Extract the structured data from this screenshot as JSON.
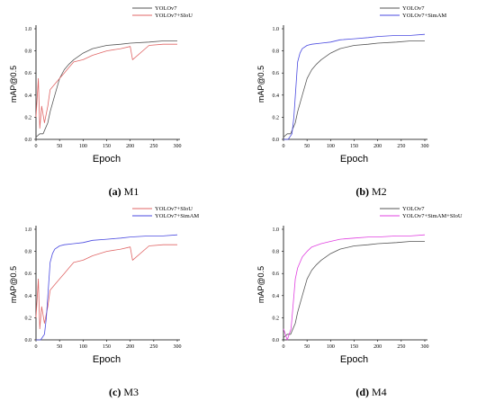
{
  "colors": {
    "YOLOv7": "#555555",
    "YOLOv7+SIoU": "#e06666",
    "YOLOv7+SimAM": "#4a4ae0",
    "YOLOv7+SimAM+SIoU": "#e040e0"
  },
  "chart_data": [
    {
      "type": "line",
      "caption_label": "(a)",
      "caption_text": "M1",
      "xlabel": "Epoch",
      "ylabel": "mAP@0.5",
      "xlim": [
        0,
        300
      ],
      "ylim": [
        0,
        1.0
      ],
      "xticks": [
        "0",
        "50",
        "100",
        "150",
        "200",
        "250",
        "300"
      ],
      "yticks": [
        "0.0",
        "0.2",
        "0.4",
        "0.6",
        "0.8",
        "1.0"
      ],
      "legend_position": "top",
      "series": [
        {
          "name": "YOLOv7",
          "x": [
            0,
            8,
            15,
            20,
            25,
            30,
            40,
            50,
            60,
            70,
            80,
            100,
            120,
            150,
            180,
            200,
            240,
            270,
            300
          ],
          "y": [
            0.02,
            0.05,
            0.05,
            0.1,
            0.15,
            0.25,
            0.4,
            0.55,
            0.63,
            0.68,
            0.72,
            0.78,
            0.82,
            0.85,
            0.86,
            0.87,
            0.88,
            0.89,
            0.89
          ]
        },
        {
          "name": "YOLOv7+SIoU",
          "x": [
            0,
            5,
            8,
            12,
            18,
            25,
            30,
            40,
            50,
            60,
            70,
            80,
            100,
            120,
            150,
            180,
            200,
            205,
            240,
            270,
            300
          ],
          "y": [
            0.2,
            0.55,
            0.1,
            0.3,
            0.15,
            0.3,
            0.45,
            0.5,
            0.55,
            0.6,
            0.65,
            0.7,
            0.72,
            0.76,
            0.8,
            0.82,
            0.84,
            0.72,
            0.85,
            0.86,
            0.86
          ]
        }
      ]
    },
    {
      "type": "line",
      "caption_label": "(b)",
      "caption_text": "M2",
      "xlabel": "Epoch",
      "ylabel": "mAP@0.5",
      "xlim": [
        0,
        300
      ],
      "ylim": [
        0,
        1.0
      ],
      "xticks": [
        "0",
        "50",
        "100",
        "150",
        "200",
        "250",
        "300"
      ],
      "yticks": [
        "0.0",
        "0.2",
        "0.4",
        "0.6",
        "0.8",
        "1.0"
      ],
      "legend_position": "top",
      "series": [
        {
          "name": "YOLOv7",
          "x": [
            0,
            8,
            15,
            20,
            25,
            30,
            40,
            50,
            60,
            70,
            80,
            100,
            120,
            150,
            180,
            200,
            240,
            270,
            300
          ],
          "y": [
            0.02,
            0.05,
            0.05,
            0.1,
            0.15,
            0.25,
            0.4,
            0.55,
            0.63,
            0.68,
            0.72,
            0.78,
            0.82,
            0.85,
            0.86,
            0.87,
            0.88,
            0.89,
            0.89
          ]
        },
        {
          "name": "YOLOv7+SimAM",
          "x": [
            0,
            10,
            18,
            22,
            26,
            30,
            35,
            40,
            50,
            60,
            80,
            100,
            120,
            150,
            180,
            200,
            240,
            270,
            300
          ],
          "y": [
            0.0,
            0.0,
            0.05,
            0.2,
            0.45,
            0.7,
            0.78,
            0.82,
            0.85,
            0.86,
            0.87,
            0.88,
            0.9,
            0.91,
            0.92,
            0.93,
            0.94,
            0.94,
            0.95
          ]
        }
      ]
    },
    {
      "type": "line",
      "caption_label": "(c)",
      "caption_text": "M3",
      "xlabel": "Epoch",
      "ylabel": "mAP@0.5",
      "xlim": [
        0,
        300
      ],
      "ylim": [
        0,
        1.0
      ],
      "xticks": [
        "0",
        "50",
        "100",
        "150",
        "200",
        "250",
        "300"
      ],
      "yticks": [
        "0.0",
        "0.2",
        "0.4",
        "0.6",
        "0.8",
        "1.0"
      ],
      "legend_position": "top",
      "series": [
        {
          "name": "YOLOv7+SIoU",
          "x": [
            0,
            5,
            8,
            12,
            18,
            25,
            30,
            40,
            50,
            60,
            70,
            80,
            100,
            120,
            150,
            180,
            200,
            205,
            240,
            270,
            300
          ],
          "y": [
            0.2,
            0.55,
            0.1,
            0.3,
            0.15,
            0.3,
            0.45,
            0.5,
            0.55,
            0.6,
            0.65,
            0.7,
            0.72,
            0.76,
            0.8,
            0.82,
            0.84,
            0.72,
            0.85,
            0.86,
            0.86
          ]
        },
        {
          "name": "YOLOv7+SimAM",
          "x": [
            0,
            10,
            18,
            22,
            26,
            30,
            35,
            40,
            50,
            60,
            80,
            100,
            120,
            150,
            180,
            200,
            240,
            270,
            300
          ],
          "y": [
            0.0,
            0.0,
            0.05,
            0.2,
            0.45,
            0.7,
            0.78,
            0.82,
            0.85,
            0.86,
            0.87,
            0.88,
            0.9,
            0.91,
            0.92,
            0.93,
            0.94,
            0.94,
            0.95
          ]
        }
      ]
    },
    {
      "type": "line",
      "caption_label": "(d)",
      "caption_text": "M4",
      "xlabel": "Epoch",
      "ylabel": "mAP@0.5",
      "xlim": [
        0,
        300
      ],
      "ylim": [
        0,
        1.0
      ],
      "xticks": [
        "0",
        "50",
        "100",
        "150",
        "200",
        "250",
        "300"
      ],
      "yticks": [
        "0.0",
        "0.2",
        "0.4",
        "0.6",
        "0.8",
        "1.0"
      ],
      "legend_position": "top",
      "series": [
        {
          "name": "YOLOv7",
          "x": [
            0,
            8,
            15,
            20,
            25,
            30,
            40,
            50,
            60,
            70,
            80,
            100,
            120,
            150,
            180,
            200,
            240,
            270,
            300
          ],
          "y": [
            0.02,
            0.05,
            0.05,
            0.1,
            0.15,
            0.25,
            0.4,
            0.55,
            0.63,
            0.68,
            0.72,
            0.78,
            0.82,
            0.85,
            0.86,
            0.87,
            0.88,
            0.89,
            0.89
          ]
        },
        {
          "name": "YOLOv7+SimAM+SIoU",
          "x": [
            0,
            8,
            12,
            16,
            20,
            25,
            30,
            35,
            40,
            50,
            60,
            80,
            100,
            120,
            150,
            180,
            200,
            240,
            270,
            300
          ],
          "y": [
            0.1,
            0.0,
            0.05,
            0.1,
            0.3,
            0.55,
            0.65,
            0.7,
            0.75,
            0.8,
            0.84,
            0.87,
            0.89,
            0.91,
            0.92,
            0.93,
            0.93,
            0.94,
            0.94,
            0.95
          ]
        }
      ]
    }
  ]
}
